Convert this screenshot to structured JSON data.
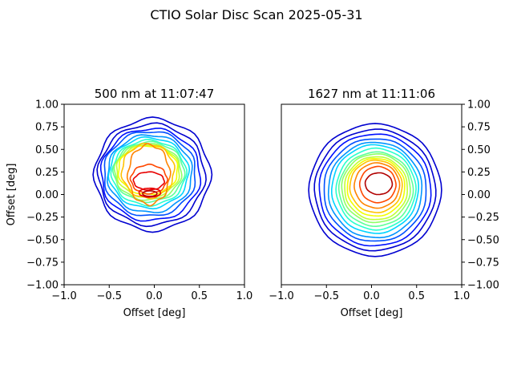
{
  "figure": {
    "title": "CTIO Solar Disc Scan 2025-05-31"
  },
  "colormap": [
    "#00007f",
    "#0000d0",
    "#0010ff",
    "#0050ff",
    "#0094ff",
    "#00d4ff",
    "#29ffce",
    "#5dff9a",
    "#8fff67",
    "#c1ff36",
    "#f2ff00",
    "#ffc300",
    "#ff8400",
    "#ff4800",
    "#e80000",
    "#b10000"
  ],
  "chart_data": [
    {
      "type": "contour",
      "title": "500 nm at 11:07:47",
      "xlabel": "Offset [deg]",
      "ylabel": "Offset [deg]",
      "xlim": [
        -1.0,
        1.0
      ],
      "ylim": [
        -1.0,
        1.0
      ],
      "xticks": [
        "−1.0",
        "−0.5",
        "0.0",
        "0.5",
        "1.0"
      ],
      "yticks": [
        "−1.00",
        "−0.75",
        "−0.50",
        "−0.25",
        "0.00",
        "0.25",
        "0.50",
        "0.75",
        "1.00"
      ],
      "yaxis_side": "left",
      "show_xlabel": true,
      "show_ylabel": true,
      "levels": [
        {
          "color_index": 1,
          "cx": -0.02,
          "cy": 0.22,
          "rx": 0.64,
          "ry": 0.62,
          "wobble": 0.03
        },
        {
          "color_index": 1,
          "cx": -0.03,
          "cy": 0.22,
          "rx": 0.59,
          "ry": 0.56,
          "wobble": 0.03
        },
        {
          "color_index": 2,
          "cx": -0.04,
          "cy": 0.22,
          "rx": 0.55,
          "ry": 0.51,
          "wobble": 0.03
        },
        {
          "color_index": 3,
          "cx": -0.05,
          "cy": 0.23,
          "rx": 0.51,
          "ry": 0.47,
          "wobble": 0.03
        },
        {
          "color_index": 4,
          "cx": -0.05,
          "cy": 0.23,
          "rx": 0.47,
          "ry": 0.43,
          "wobble": 0.03
        },
        {
          "color_index": 5,
          "cx": -0.06,
          "cy": 0.24,
          "rx": 0.44,
          "ry": 0.39,
          "wobble": 0.03
        },
        {
          "color_index": 6,
          "cx": -0.06,
          "cy": 0.24,
          "rx": 0.41,
          "ry": 0.36,
          "wobble": 0.03
        },
        {
          "color_index": 7,
          "cx": -0.06,
          "cy": 0.25,
          "rx": 0.39,
          "ry": 0.33,
          "wobble": 0.03
        },
        {
          "color_index": 8,
          "cx": -0.07,
          "cy": 0.25,
          "rx": 0.37,
          "ry": 0.31,
          "wobble": 0.03
        },
        {
          "color_index": 9,
          "cx": -0.07,
          "cy": 0.26,
          "rx": 0.35,
          "ry": 0.29,
          "wobble": 0.03
        },
        {
          "color_index": 10,
          "cx": -0.07,
          "cy": 0.27,
          "rx": 0.33,
          "ry": 0.27,
          "wobble": 0.03
        },
        {
          "color_index": 11,
          "cx": -0.07,
          "cy": 0.26,
          "rx": 0.29,
          "ry": 0.3,
          "wobble": 0.04
        },
        {
          "color_index": 12,
          "cx": -0.06,
          "cy": 0.22,
          "rx": 0.23,
          "ry": 0.33,
          "wobble": 0.05
        },
        {
          "color_index": 13,
          "cx": -0.06,
          "cy": 0.17,
          "rx": 0.2,
          "ry": 0.16,
          "wobble": 0.04
        },
        {
          "color_index": 14,
          "cx": -0.06,
          "cy": 0.15,
          "rx": 0.17,
          "ry": 0.1,
          "wobble": 0.03
        },
        {
          "color_index": 14,
          "cx": -0.05,
          "cy": 0.02,
          "rx": 0.12,
          "ry": 0.05,
          "wobble": 0.02
        },
        {
          "color_index": 15,
          "cx": -0.05,
          "cy": 0.01,
          "rx": 0.08,
          "ry": 0.03,
          "wobble": 0.01
        }
      ]
    },
    {
      "type": "contour",
      "title": "1627 nm at 11:11:06",
      "xlabel": "Offset [deg]",
      "ylabel": "",
      "xlim": [
        -1.0,
        1.0
      ],
      "ylim": [
        -1.0,
        1.0
      ],
      "xticks": [
        "−1.0",
        "−0.5",
        "0.0",
        "0.5",
        "1.0"
      ],
      "yticks": [
        "−1.00",
        "−0.75",
        "−0.50",
        "−0.25",
        "0.00",
        "0.25",
        "0.50",
        "0.75",
        "1.00"
      ],
      "yaxis_side": "right",
      "show_xlabel": true,
      "show_ylabel": false,
      "levels": [
        {
          "color_index": 1,
          "cx": 0.04,
          "cy": 0.05,
          "rx": 0.73,
          "ry": 0.73,
          "wobble": 0.01
        },
        {
          "color_index": 1,
          "cx": 0.04,
          "cy": 0.05,
          "rx": 0.67,
          "ry": 0.67,
          "wobble": 0.01
        },
        {
          "color_index": 2,
          "cx": 0.04,
          "cy": 0.05,
          "rx": 0.62,
          "ry": 0.62,
          "wobble": 0.01
        },
        {
          "color_index": 3,
          "cx": 0.04,
          "cy": 0.05,
          "rx": 0.57,
          "ry": 0.57,
          "wobble": 0.01
        },
        {
          "color_index": 4,
          "cx": 0.04,
          "cy": 0.05,
          "rx": 0.52,
          "ry": 0.53,
          "wobble": 0.01
        },
        {
          "color_index": 5,
          "cx": 0.04,
          "cy": 0.06,
          "rx": 0.48,
          "ry": 0.49,
          "wobble": 0.01
        },
        {
          "color_index": 6,
          "cx": 0.05,
          "cy": 0.06,
          "rx": 0.44,
          "ry": 0.45,
          "wobble": 0.01
        },
        {
          "color_index": 7,
          "cx": 0.05,
          "cy": 0.06,
          "rx": 0.41,
          "ry": 0.41,
          "wobble": 0.01
        },
        {
          "color_index": 8,
          "cx": 0.05,
          "cy": 0.07,
          "rx": 0.38,
          "ry": 0.38,
          "wobble": 0.01
        },
        {
          "color_index": 9,
          "cx": 0.05,
          "cy": 0.07,
          "rx": 0.35,
          "ry": 0.35,
          "wobble": 0.01
        },
        {
          "color_index": 10,
          "cx": 0.05,
          "cy": 0.08,
          "rx": 0.32,
          "ry": 0.32,
          "wobble": 0.01
        },
        {
          "color_index": 11,
          "cx": 0.05,
          "cy": 0.09,
          "rx": 0.29,
          "ry": 0.29,
          "wobble": 0.01
        },
        {
          "color_index": 12,
          "cx": 0.06,
          "cy": 0.1,
          "rx": 0.25,
          "ry": 0.25,
          "wobble": 0.01
        },
        {
          "color_index": 13,
          "cx": 0.07,
          "cy": 0.11,
          "rx": 0.2,
          "ry": 0.2,
          "wobble": 0.01
        },
        {
          "color_index": 15,
          "cx": 0.08,
          "cy": 0.12,
          "rx": 0.15,
          "ry": 0.12,
          "wobble": 0.01
        }
      ]
    }
  ]
}
